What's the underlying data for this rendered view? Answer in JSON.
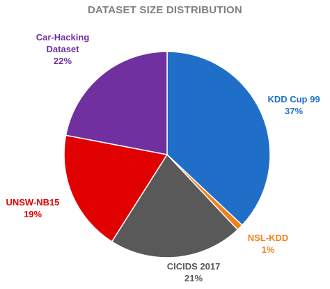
{
  "chart_data": {
    "type": "pie",
    "title": "DATASET SIZE DISTRIBUTION",
    "slices": [
      {
        "name": "KDD Cup 99",
        "value": 37,
        "label": "37%",
        "color": "#1f6fc8"
      },
      {
        "name": "NSL-KDD",
        "value": 1,
        "label": "1%",
        "color": "#f0821e"
      },
      {
        "name": "CICIDS 2017",
        "value": 21,
        "label": "21%",
        "color": "#595959"
      },
      {
        "name": "UNSW-NB15",
        "value": 19,
        "label": "19%",
        "color": "#e00000"
      },
      {
        "name": "Car-Hacking Dataset",
        "value": 22,
        "label": "22%",
        "color": "#7030a0"
      }
    ],
    "start": "12 o'clock",
    "direction": "clockwise"
  }
}
